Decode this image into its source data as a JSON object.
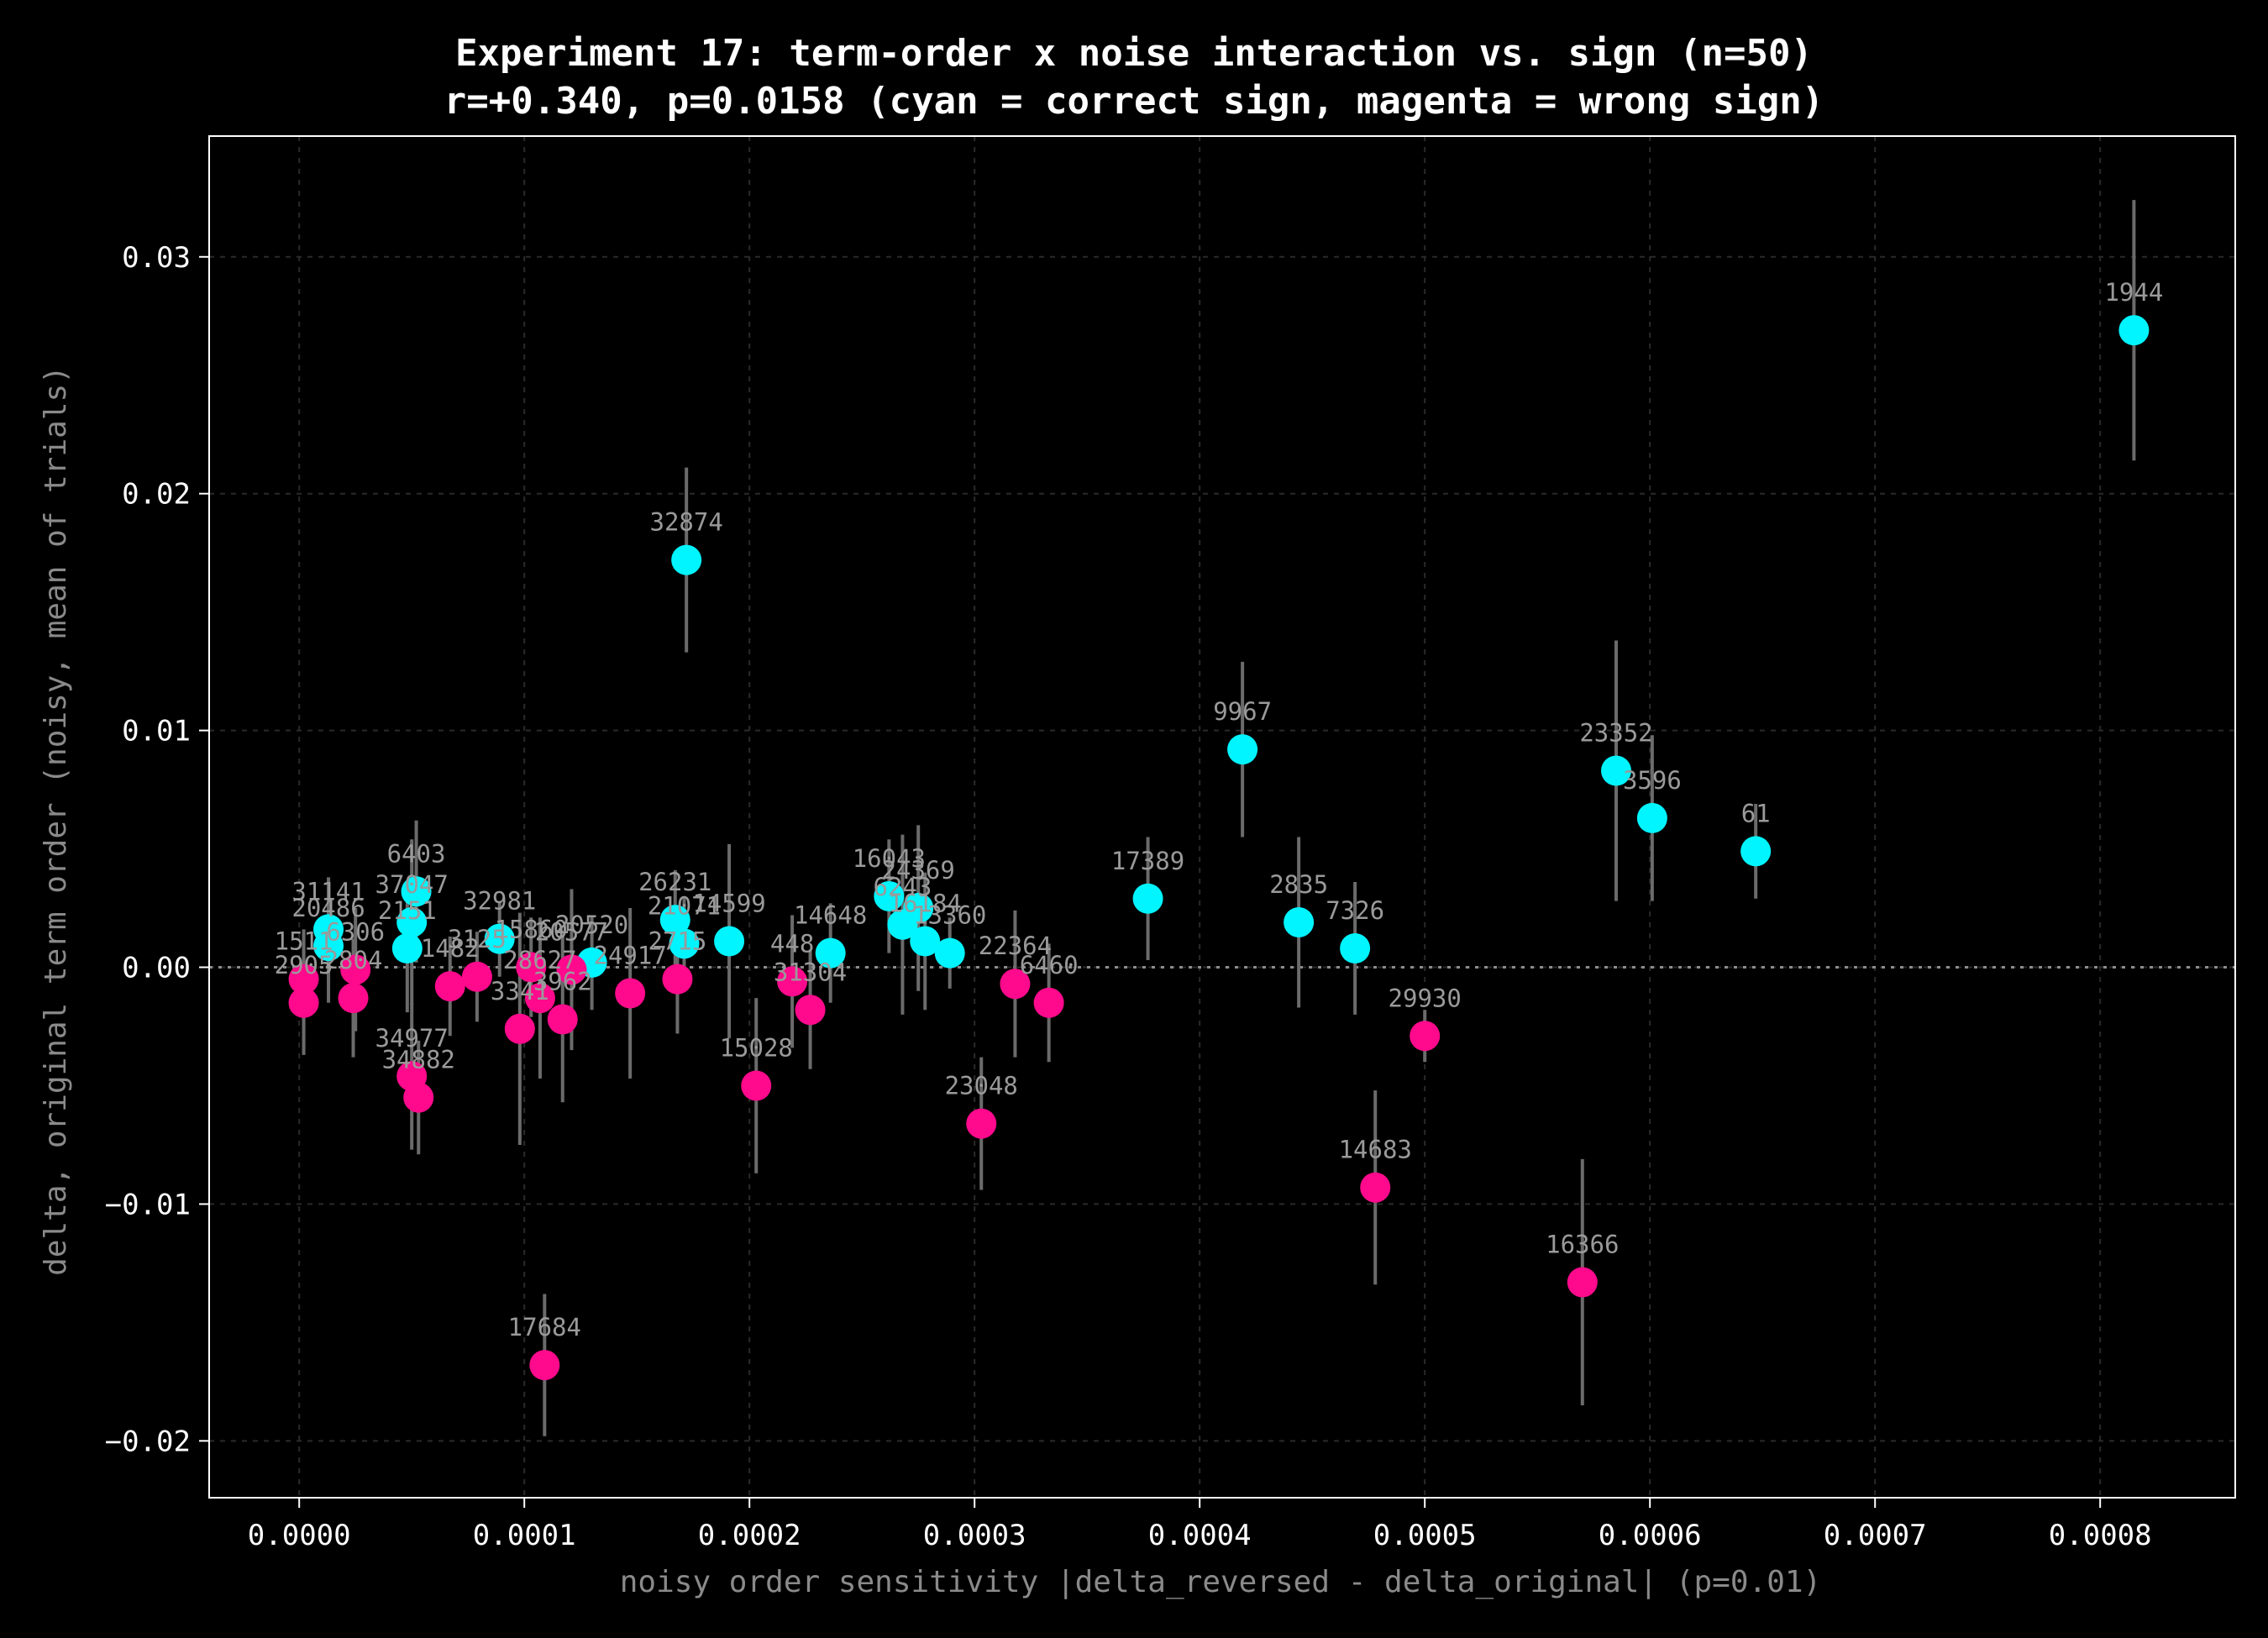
{
  "chart_data": {
    "type": "scatter",
    "title": "Experiment 17: term-order x noise interaction vs. sign (n=50)",
    "subtitle": "r=+0.340, p=0.0158 (cyan = correct sign, magenta = wrong sign)",
    "xlabel": "noisy order sensitivity |delta_reversed - delta_original| (p=0.01)",
    "ylabel": "delta, original term order (noisy, mean of trials)",
    "xlim": [
      -4e-05,
      0.00086
    ],
    "ylim": [
      -0.0224,
      0.0351
    ],
    "xticks": [
      "0.0000",
      "0.0001",
      "0.0002",
      "0.0003",
      "0.0004",
      "0.0005",
      "0.0006",
      "0.0007",
      "0.0008"
    ],
    "yticks": [
      "−0.02",
      "−0.01",
      "0.00",
      "0.01",
      "0.02",
      "0.03"
    ],
    "grid": true,
    "reference_line_y": 0,
    "colors": {
      "correct": "#00f5ff",
      "wrong": "#ff0a8c",
      "errorbar": "#6b6b6b",
      "label": "#9a9a9a",
      "axes": "#ffffff"
    },
    "points": [
      {
        "id": "1944",
        "x": 0.000815,
        "y": 0.0269,
        "err": 0.0055,
        "sign": "correct"
      },
      {
        "id": "32874",
        "x": 0.000172,
        "y": 0.0172,
        "err": 0.0039,
        "sign": "correct"
      },
      {
        "id": "9967",
        "x": 0.000419,
        "y": 0.0092,
        "err": 0.0037,
        "sign": "correct"
      },
      {
        "id": "23352",
        "x": 0.000585,
        "y": 0.0083,
        "err": 0.0055,
        "sign": "correct"
      },
      {
        "id": "3596",
        "x": 0.000601,
        "y": 0.0063,
        "err": 0.0035,
        "sign": "correct"
      },
      {
        "id": "61",
        "x": 0.000647,
        "y": 0.0049,
        "err": 0.002,
        "sign": "correct"
      },
      {
        "id": "17389",
        "x": 0.000377,
        "y": 0.0029,
        "err": 0.0026,
        "sign": "correct"
      },
      {
        "id": "2835",
        "x": 0.000444,
        "y": 0.0019,
        "err": 0.0036,
        "sign": "correct"
      },
      {
        "id": "7326",
        "x": 0.000469,
        "y": 0.0008,
        "err": 0.0028,
        "sign": "correct"
      },
      {
        "id": "6403",
        "x": 5.2e-05,
        "y": 0.0032,
        "err": 0.003,
        "sign": "correct"
      },
      {
        "id": "31141",
        "x": 1.3e-05,
        "y": 0.0016,
        "err": 0.0022,
        "sign": "correct"
      },
      {
        "id": "20486",
        "x": 1.3e-05,
        "y": 0.0009,
        "err": 0.0024,
        "sign": "correct"
      },
      {
        "id": "37047",
        "x": 5e-05,
        "y": 0.0019,
        "err": 0.0035,
        "sign": "correct"
      },
      {
        "id": "2151",
        "x": 4.8e-05,
        "y": 0.0008,
        "err": 0.0027,
        "sign": "correct"
      },
      {
        "id": "32981",
        "x": 8.9e-05,
        "y": 0.0012,
        "err": 0.0016,
        "sign": "correct"
      },
      {
        "id": "20520",
        "x": 0.00013,
        "y": 0.0002,
        "err": 0.002,
        "sign": "correct"
      },
      {
        "id": "26231",
        "x": 0.000167,
        "y": 0.002,
        "err": 0.0021,
        "sign": "correct"
      },
      {
        "id": "21071",
        "x": 0.000171,
        "y": 0.001,
        "err": 0.002,
        "sign": "correct"
      },
      {
        "id": "14599",
        "x": 0.000191,
        "y": 0.0011,
        "err": 0.0041,
        "sign": "correct"
      },
      {
        "id": "14648",
        "x": 0.000236,
        "y": 0.0006,
        "err": 0.0021,
        "sign": "correct"
      },
      {
        "id": "16043",
        "x": 0.000262,
        "y": 0.003,
        "err": 0.0024,
        "sign": "correct"
      },
      {
        "id": "24369",
        "x": 0.000275,
        "y": 0.0025,
        "err": 0.0035,
        "sign": "correct"
      },
      {
        "id": "6243",
        "x": 0.000268,
        "y": 0.0018,
        "err": 0.0038,
        "sign": "correct"
      },
      {
        "id": "16184",
        "x": 0.000278,
        "y": 0.0011,
        "err": 0.0029,
        "sign": "correct"
      },
      {
        "id": "13360",
        "x": 0.000289,
        "y": 0.0006,
        "err": 0.0015,
        "sign": "correct"
      },
      {
        "id": "17684",
        "x": 0.000109,
        "y": -0.0168,
        "err": 0.003,
        "sign": "wrong"
      },
      {
        "id": "16366",
        "x": 0.00057,
        "y": -0.0133,
        "err": 0.0052,
        "sign": "wrong"
      },
      {
        "id": "14683",
        "x": 0.000478,
        "y": -0.0093,
        "err": 0.0041,
        "sign": "wrong"
      },
      {
        "id": "29930",
        "x": 0.0005,
        "y": -0.0029,
        "err": 0.0011,
        "sign": "wrong"
      },
      {
        "id": "23048",
        "x": 0.000303,
        "y": -0.0066,
        "err": 0.0028,
        "sign": "wrong"
      },
      {
        "id": "15028",
        "x": 0.000203,
        "y": -0.005,
        "err": 0.0037,
        "sign": "wrong"
      },
      {
        "id": "22364",
        "x": 0.000318,
        "y": -0.0007,
        "err": 0.0031,
        "sign": "wrong"
      },
      {
        "id": "6460",
        "x": 0.000333,
        "y": -0.0015,
        "err": 0.0025,
        "sign": "wrong"
      },
      {
        "id": "448",
        "x": 0.000219,
        "y": -0.0006,
        "err": 0.0028,
        "sign": "wrong"
      },
      {
        "id": "31304",
        "x": 0.000227,
        "y": -0.0018,
        "err": 0.0025,
        "sign": "wrong"
      },
      {
        "id": "34977",
        "x": 5e-05,
        "y": -0.0046,
        "err": 0.0031,
        "sign": "wrong"
      },
      {
        "id": "34882",
        "x": 5.3e-05,
        "y": -0.0055,
        "err": 0.0024,
        "sign": "wrong"
      },
      {
        "id": "1511",
        "x": 2e-06,
        "y": -0.0005,
        "err": 0.0021,
        "sign": "wrong"
      },
      {
        "id": "2905",
        "x": 2e-06,
        "y": -0.0015,
        "err": 0.0022,
        "sign": "wrong"
      },
      {
        "id": "6306",
        "x": 2.5e-05,
        "y": -0.0001,
        "err": 0.0026,
        "sign": "wrong"
      },
      {
        "id": "2804",
        "x": 2.4e-05,
        "y": -0.0013,
        "err": 0.0025,
        "sign": "wrong"
      },
      {
        "id": "1482",
        "x": 6.7e-05,
        "y": -0.0008,
        "err": 0.0021,
        "sign": "wrong"
      },
      {
        "id": "3125",
        "x": 7.9e-05,
        "y": -0.0004,
        "err": 0.0019,
        "sign": "wrong"
      },
      {
        "id": "3341",
        "x": 9.8e-05,
        "y": -0.0026,
        "err": 0.0049,
        "sign": "wrong"
      },
      {
        "id": "15860",
        "x": 0.000103,
        "y": 0,
        "err": 0.0021,
        "sign": "wrong"
      },
      {
        "id": "28627",
        "x": 0.000107,
        "y": -0.0013,
        "err": 0.0034,
        "sign": "wrong"
      },
      {
        "id": "3962",
        "x": 0.000117,
        "y": -0.0022,
        "err": 0.0035,
        "sign": "wrong"
      },
      {
        "id": "20577",
        "x": 0.000121,
        "y": -0.0001,
        "err": 0.0034,
        "sign": "wrong"
      },
      {
        "id": "24917",
        "x": 0.000147,
        "y": -0.0011,
        "err": 0.0036,
        "sign": "wrong"
      },
      {
        "id": "2715",
        "x": 0.000168,
        "y": -0.0005,
        "err": 0.0023,
        "sign": "wrong"
      }
    ]
  }
}
